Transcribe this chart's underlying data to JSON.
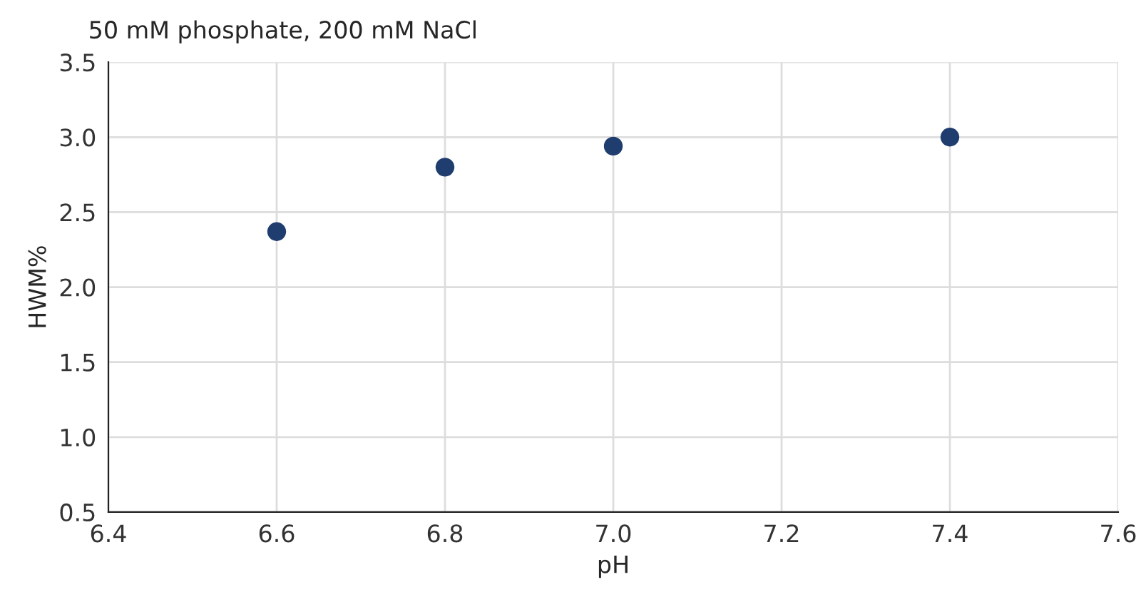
{
  "chart_data": {
    "type": "scatter",
    "title": "50 mM phosphate, 200 mM NaCl",
    "xlabel": "pH",
    "ylabel": "HWM%",
    "x": [
      6.6,
      6.8,
      7.0,
      7.4
    ],
    "series": [
      {
        "color": "#1f3d6e",
        "values": [
          2.37,
          2.8,
          2.94,
          3.0
        ]
      }
    ],
    "xlim": [
      6.4,
      7.6
    ],
    "xticks": [
      {
        "value": 6.4,
        "label": "6.4"
      },
      {
        "value": 6.6,
        "label": "6.6"
      },
      {
        "value": 6.8,
        "label": "6.8"
      },
      {
        "value": 7.0,
        "label": "7.0"
      },
      {
        "value": 7.2,
        "label": "7.2"
      },
      {
        "value": 7.4,
        "label": "7.4"
      },
      {
        "value": 7.6,
        "label": "7.6"
      }
    ],
    "ylim": [
      0.5,
      3.5
    ],
    "yticks": [
      {
        "value": 0.5,
        "label": "0.5"
      },
      {
        "value": 1.0,
        "label": "1.0"
      },
      {
        "value": 1.5,
        "label": "1.5"
      },
      {
        "value": 2.0,
        "label": "2.0"
      },
      {
        "value": 2.5,
        "label": "2.5"
      },
      {
        "value": 3.0,
        "label": "3.0"
      },
      {
        "value": 3.5,
        "label": "3.5"
      }
    ],
    "grid": true,
    "marker": "circle"
  }
}
